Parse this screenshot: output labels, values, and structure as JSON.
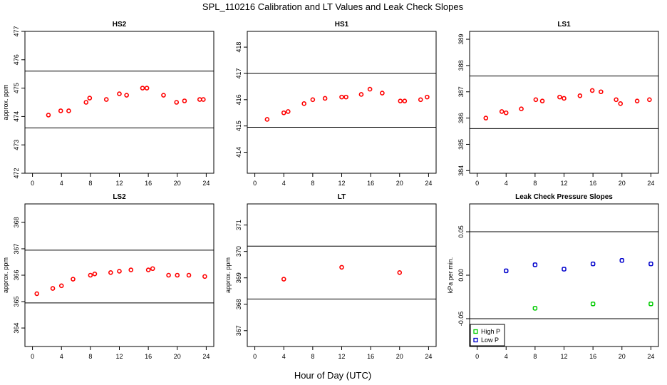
{
  "figure": {
    "title": "SPL_110216  Calibration and LT Values and Leak Check Slopes",
    "xlabel": "Hour of Day (UTC)"
  },
  "chart_data": [
    {
      "type": "scatter",
      "title": "HS2",
      "ylabel": "approx. ppm",
      "xlim": [
        0,
        24
      ],
      "ylim": [
        472,
        477
      ],
      "xticks": [
        0,
        4,
        8,
        12,
        16,
        20,
        24
      ],
      "yticks": [
        472,
        473,
        474,
        475,
        476,
        477
      ],
      "hlines": [
        473.6,
        475.6
      ],
      "point_color": "#ff0000",
      "series": [
        {
          "x": [
            2.2,
            3.9,
            5.0,
            7.4,
            7.9,
            10.2,
            12.0,
            13.0,
            15.2,
            15.8,
            18.1,
            19.9,
            21.0,
            23.1,
            23.6
          ],
          "y": [
            474.05,
            474.2,
            474.2,
            474.5,
            474.65,
            474.6,
            474.8,
            474.75,
            475.0,
            475.0,
            474.75,
            474.5,
            474.55,
            474.6,
            474.6
          ]
        }
      ]
    },
    {
      "type": "scatter",
      "title": "HS1",
      "ylabel": "",
      "xlim": [
        0,
        24
      ],
      "ylim": [
        413.2,
        418.6
      ],
      "xticks": [
        0,
        4,
        8,
        12,
        16,
        20,
        24
      ],
      "yticks": [
        414,
        415,
        416,
        417,
        418
      ],
      "hlines": [
        414.95,
        417.0
      ],
      "point_color": "#ff0000",
      "series": [
        {
          "x": [
            1.7,
            4.0,
            4.6,
            6.8,
            8.0,
            9.7,
            12.0,
            12.6,
            14.7,
            15.9,
            17.6,
            20.1,
            20.7,
            22.9,
            23.8
          ],
          "y": [
            415.25,
            415.5,
            415.55,
            415.85,
            416.0,
            416.05,
            416.1,
            416.1,
            416.2,
            416.4,
            416.25,
            415.95,
            415.95,
            416.0,
            416.1
          ]
        }
      ]
    },
    {
      "type": "scatter",
      "title": "LS1",
      "ylabel": "",
      "xlim": [
        0,
        24
      ],
      "ylim": [
        383.9,
        389.3
      ],
      "xticks": [
        0,
        4,
        8,
        12,
        16,
        20,
        24
      ],
      "yticks": [
        384,
        385,
        386,
        387,
        388,
        389
      ],
      "hlines": [
        385.6,
        387.6
      ],
      "point_color": "#ff0000",
      "series": [
        {
          "x": [
            1.2,
            3.4,
            4.0,
            6.1,
            8.1,
            9.0,
            11.4,
            12.0,
            14.2,
            15.9,
            17.1,
            19.2,
            19.8,
            22.1,
            23.8
          ],
          "y": [
            386.0,
            386.25,
            386.2,
            386.35,
            386.7,
            386.65,
            386.8,
            386.75,
            386.85,
            387.05,
            387.0,
            386.7,
            386.55,
            386.65,
            386.7
          ]
        }
      ]
    },
    {
      "type": "scatter",
      "title": "LS2",
      "ylabel": "approx. ppm",
      "xlim": [
        0,
        24
      ],
      "ylim": [
        363.3,
        368.7
      ],
      "xticks": [
        0,
        4,
        8,
        12,
        16,
        20,
        24
      ],
      "yticks": [
        364,
        365,
        366,
        367,
        368
      ],
      "hlines": [
        364.95,
        366.95
      ],
      "point_color": "#ff0000",
      "series": [
        {
          "x": [
            0.6,
            2.8,
            4.0,
            5.6,
            8.0,
            8.6,
            10.8,
            12.0,
            13.6,
            16.0,
            16.6,
            18.8,
            20.0,
            21.6,
            23.8
          ],
          "y": [
            365.3,
            365.5,
            365.6,
            365.85,
            366.0,
            366.05,
            366.1,
            366.15,
            366.2,
            366.2,
            366.25,
            366.0,
            366.0,
            366.0,
            365.95
          ]
        }
      ]
    },
    {
      "type": "scatter",
      "title": "LT",
      "ylabel": "approx. ppm",
      "xlim": [
        0,
        24
      ],
      "ylim": [
        366.4,
        371.8
      ],
      "xticks": [
        0,
        4,
        8,
        12,
        16,
        20,
        24
      ],
      "yticks": [
        367,
        368,
        369,
        370,
        371
      ],
      "hlines": [
        368.2,
        370.2
      ],
      "point_color": "#ff0000",
      "series": [
        {
          "x": [
            4.0,
            12.0,
            20.0
          ],
          "y": [
            368.95,
            369.4,
            369.2
          ]
        }
      ]
    },
    {
      "type": "scatter",
      "title": "Leak Check Pressure Slopes",
      "ylabel": "kPa per min.",
      "xlim": [
        0,
        24
      ],
      "ylim": [
        -0.082,
        0.082
      ],
      "xticks": [
        0,
        4,
        8,
        12,
        16,
        20,
        24
      ],
      "yticks": [
        -0.05,
        0.0,
        0.05
      ],
      "ytick_labels": [
        "-0.05",
        "0.00",
        "0.05"
      ],
      "hlines": [
        -0.05,
        0.05
      ],
      "legend": {
        "position": "bottom-left"
      },
      "series": [
        {
          "name": "High P",
          "color": "#00cc00",
          "x": [
            8.0,
            16.0,
            24.0
          ],
          "y": [
            -0.038,
            -0.033,
            -0.033
          ]
        },
        {
          "name": "Low P",
          "color": "#0000cc",
          "x": [
            4.0,
            8.0,
            12.0,
            16.0,
            20.0,
            24.0
          ],
          "y": [
            0.005,
            0.012,
            0.007,
            0.013,
            0.017,
            0.013
          ]
        }
      ]
    }
  ]
}
